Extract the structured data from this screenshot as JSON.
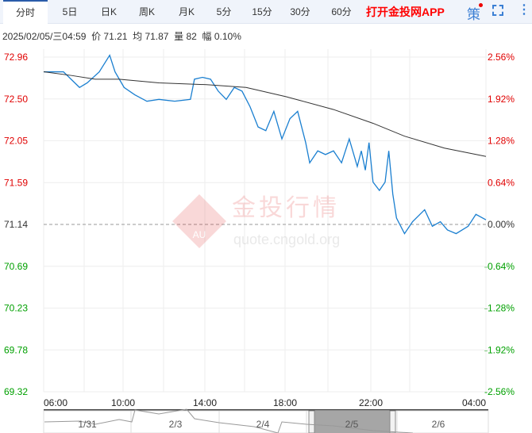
{
  "tabs": [
    {
      "label": "分时"
    },
    {
      "label": "5日"
    },
    {
      "label": "日K"
    },
    {
      "label": "周K"
    },
    {
      "label": "月K"
    },
    {
      "label": "5分"
    },
    {
      "label": "15分"
    },
    {
      "label": "30分"
    },
    {
      "label": "60分"
    }
  ],
  "app_link": "打开金投网APP",
  "icons": {
    "strategy": "策",
    "fullscreen": "fullscreen-icon",
    "more": "more-vertical-icon"
  },
  "info": "2025/02/05/三04:59  价 71.21  均 71.87  量 82  幅 0.10%",
  "watermark": {
    "text": "金投行情",
    "url": "quote.cngold.org",
    "logo": "AU"
  },
  "navigator": {
    "labels": [
      "1/31",
      "2/3",
      "2/4",
      "2/5",
      "2/6"
    ]
  },
  "colors": {
    "price": "#1a7fd0",
    "avg": "#333333",
    "up": "#e00000",
    "down": "#00a000",
    "base": "#333333"
  },
  "chart_data": {
    "type": "line",
    "ylim": [
      69.32,
      72.96
    ],
    "base": 71.14,
    "y_ticks": [
      "72.96",
      "72.50",
      "72.05",
      "71.59",
      "71.14",
      "70.69",
      "70.23",
      "69.78",
      "69.32"
    ],
    "pct_ticks": [
      "2.56%",
      "1.92%",
      "1.28%",
      "0.64%",
      "0.00%",
      "-0.64%",
      "-1.28%",
      "-1.92%",
      "-2.56%"
    ],
    "x_ticks": [
      "06:00",
      "10:00",
      "14:00",
      "18:00",
      "22:00",
      "04:00"
    ],
    "grid": true,
    "series": [
      {
        "key": "price",
        "points": [
          [
            "06:00",
            72.8
          ],
          [
            "06:59",
            72.8
          ],
          [
            "07:47",
            72.63
          ],
          [
            "08:10",
            72.68
          ],
          [
            "08:46",
            72.8
          ],
          [
            "09:17",
            72.98
          ],
          [
            "09:33",
            72.8
          ],
          [
            "10:00",
            72.63
          ],
          [
            "10:32",
            72.55
          ],
          [
            "11:08",
            72.48
          ],
          [
            "11:44",
            72.5
          ],
          [
            "12:31",
            72.48
          ],
          [
            "13:18",
            72.5
          ],
          [
            "13:30",
            72.72
          ],
          [
            "13:54",
            72.74
          ],
          [
            "14:18",
            72.72
          ],
          [
            "14:41",
            72.59
          ],
          [
            "15:05",
            72.5
          ],
          [
            "15:29",
            72.63
          ],
          [
            "15:52",
            72.59
          ],
          [
            "16:16",
            72.42
          ],
          [
            "16:40",
            72.2
          ],
          [
            "17:03",
            72.16
          ],
          [
            "17:27",
            72.37
          ],
          [
            "17:51",
            72.07
          ],
          [
            "18:15",
            72.29
          ],
          [
            "18:38",
            72.37
          ],
          [
            "19:02",
            72.03
          ],
          [
            "19:14",
            71.81
          ],
          [
            "19:38",
            71.94
          ],
          [
            "20:01",
            71.9
          ],
          [
            "20:25",
            71.94
          ],
          [
            "20:49",
            71.81
          ],
          [
            "21:12",
            72.07
          ],
          [
            "21:36",
            71.77
          ],
          [
            "21:48",
            71.94
          ],
          [
            "22:00",
            71.73
          ],
          [
            "22:11",
            72.03
          ],
          [
            "22:23",
            71.6
          ],
          [
            "22:42",
            71.51
          ],
          [
            "22:59",
            71.6
          ],
          [
            "23:10",
            71.94
          ],
          [
            "23:22",
            71.47
          ],
          [
            "23:33",
            71.21
          ],
          [
            "23:57",
            71.04
          ],
          [
            "00:21",
            71.17
          ],
          [
            "00:57",
            71.3
          ],
          [
            "01:20",
            71.12
          ],
          [
            "01:44",
            71.17
          ],
          [
            "02:05",
            71.08
          ],
          [
            "02:31",
            71.04
          ],
          [
            "03:07",
            71.12
          ],
          [
            "03:30",
            71.25
          ],
          [
            "04:00",
            71.19
          ]
        ]
      },
      {
        "key": "avg",
        "points": [
          [
            "06:00",
            72.8
          ],
          [
            "07:23",
            72.76
          ],
          [
            "08:34",
            72.72
          ],
          [
            "09:45",
            72.72
          ],
          [
            "11:44",
            72.68
          ],
          [
            "14:06",
            72.66
          ],
          [
            "16:04",
            72.63
          ],
          [
            "18:03",
            72.53
          ],
          [
            "20:25",
            72.39
          ],
          [
            "22:23",
            72.24
          ],
          [
            "23:57",
            72.1
          ],
          [
            "01:56",
            71.97
          ],
          [
            "04:00",
            71.88
          ]
        ]
      }
    ]
  }
}
